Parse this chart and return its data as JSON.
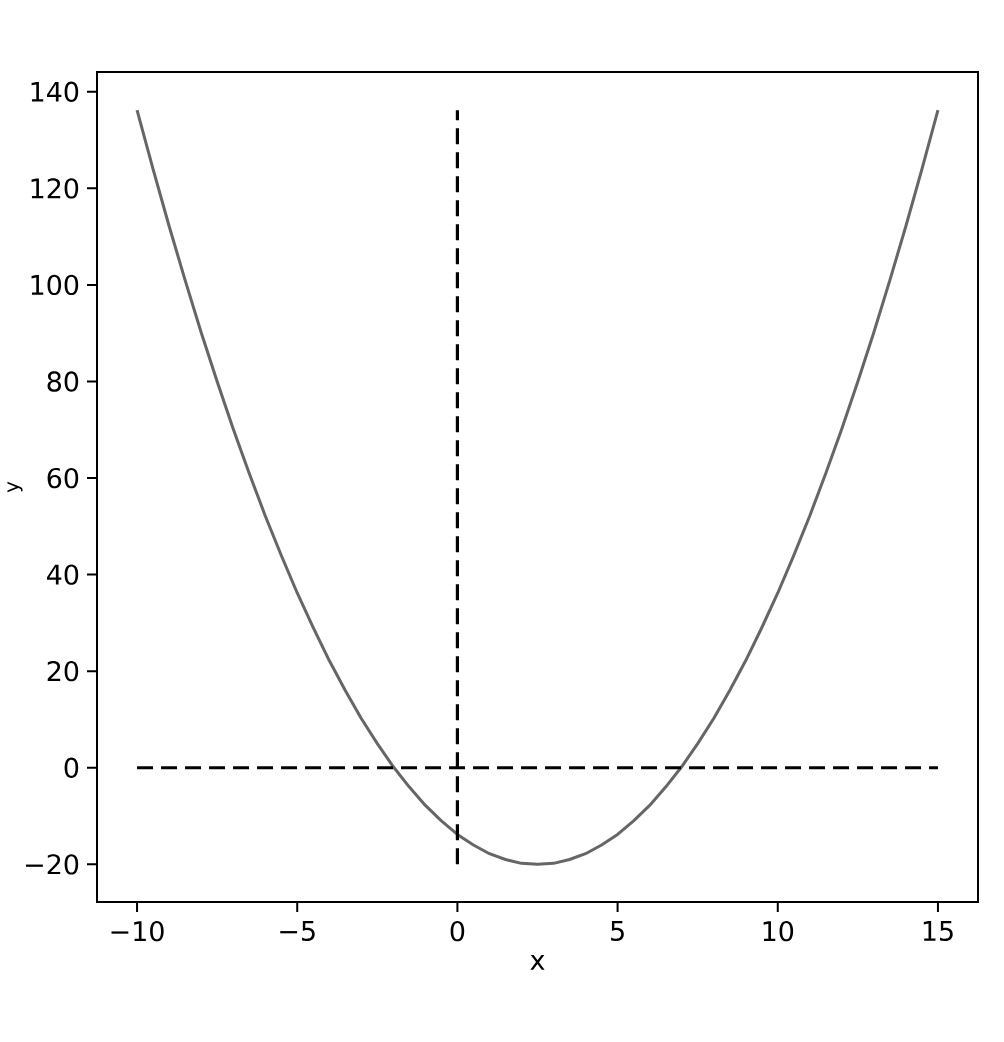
{
  "chart_data": {
    "type": "line",
    "xlabel": "x",
    "ylabel": "y",
    "xlim": [
      -11.25,
      16.25
    ],
    "ylim": [
      -27.8,
      144.1
    ],
    "xticks": [
      {
        "value": -10,
        "label": "−10"
      },
      {
        "value": -5,
        "label": "−5"
      },
      0,
      5,
      10,
      15
    ],
    "yticks": [
      {
        "value": -20,
        "label": "−20"
      },
      0,
      20,
      40,
      60,
      80,
      100,
      120,
      140
    ],
    "series": [
      {
        "color": "#666666",
        "line_style": "solid",
        "x": [
          -10,
          -9.5,
          -9,
          -8.5,
          -8,
          -7.5,
          -7,
          -6.5,
          -6,
          -5.5,
          -5,
          -4.5,
          -4,
          -3.5,
          -3,
          -2.5,
          -2,
          -1.5,
          -1,
          -0.5,
          0,
          0.5,
          1,
          1.5,
          2,
          2.5,
          3,
          3.5,
          4,
          4.5,
          5,
          5.5,
          6,
          6.5,
          7,
          7.5,
          8,
          8.5,
          9,
          9.5,
          10,
          10.5,
          11,
          11.5,
          12,
          12.5,
          13,
          13.5,
          14,
          14.5,
          15
        ],
        "values": [
          136.2,
          124,
          112.2,
          101,
          90.2,
          80,
          70.2,
          61,
          52.2,
          44,
          36.2,
          29,
          22.2,
          16,
          10.2,
          5,
          0.2,
          -4,
          -7.8,
          -11,
          -13.8,
          -16,
          -17.8,
          -19,
          -19.8,
          -20,
          -19.8,
          -19,
          -17.8,
          -16,
          -13.8,
          -11,
          -7.8,
          -4,
          0.2,
          5,
          10.2,
          16,
          22.2,
          29,
          36.2,
          44,
          52.2,
          61,
          70.2,
          80,
          90.2,
          101,
          112.2,
          124,
          136.2
        ]
      },
      {
        "color": "#000000",
        "line_style": "dashed",
        "x": [
          0,
          0
        ],
        "values": [
          -20,
          136.2
        ]
      },
      {
        "color": "#000000",
        "line_style": "dashed",
        "x": [
          -10,
          15
        ],
        "values": [
          0,
          0
        ]
      }
    ]
  }
}
